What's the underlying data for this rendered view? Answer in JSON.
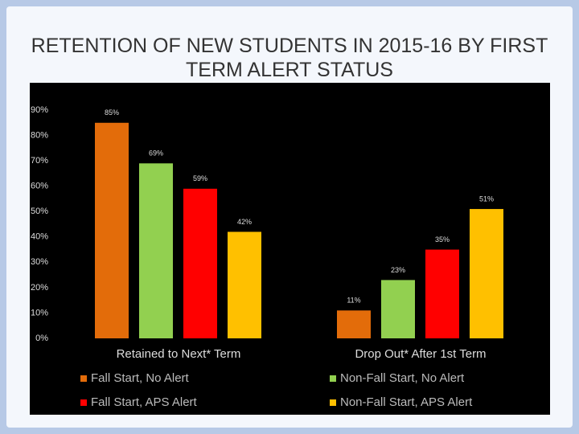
{
  "chart_data": {
    "type": "bar",
    "title": "RETENTION OF NEW STUDENTS IN 2015-16 BY FIRST TERM ALERT STATUS",
    "categories": [
      "Retained to Next* Term",
      "Drop Out* After 1st Term"
    ],
    "series": [
      {
        "name": "Fall Start, No Alert",
        "color": "#e36c0a",
        "values": [
          85,
          11
        ],
        "value_labels": [
          "85%",
          "11%"
        ]
      },
      {
        "name": "Non-Fall Start, No Alert",
        "color": "#92d050",
        "values": [
          69,
          23
        ],
        "value_labels": [
          "69%",
          "23%"
        ]
      },
      {
        "name": "Fall Start, APS Alert",
        "color": "#ff0000",
        "values": [
          59,
          35
        ],
        "value_labels": [
          "59%",
          "35%"
        ]
      },
      {
        "name": "Non-Fall Start, APS Alert",
        "color": "#ffc000",
        "values": [
          42,
          51
        ],
        "value_labels": [
          "42%",
          "51%"
        ]
      }
    ],
    "ylim": [
      0,
      90
    ],
    "yticks": [
      {
        "value": 0,
        "label": "0%"
      },
      {
        "value": 10,
        "label": "10%"
      },
      {
        "value": 20,
        "label": "20%"
      },
      {
        "value": 30,
        "label": "30%"
      },
      {
        "value": 40,
        "label": "40%"
      },
      {
        "value": 50,
        "label": "50%"
      },
      {
        "value": 60,
        "label": "60%"
      },
      {
        "value": 70,
        "label": "70%"
      },
      {
        "value": 80,
        "label": "80%"
      },
      {
        "value": 90,
        "label": "90%"
      }
    ],
    "grid": false
  }
}
